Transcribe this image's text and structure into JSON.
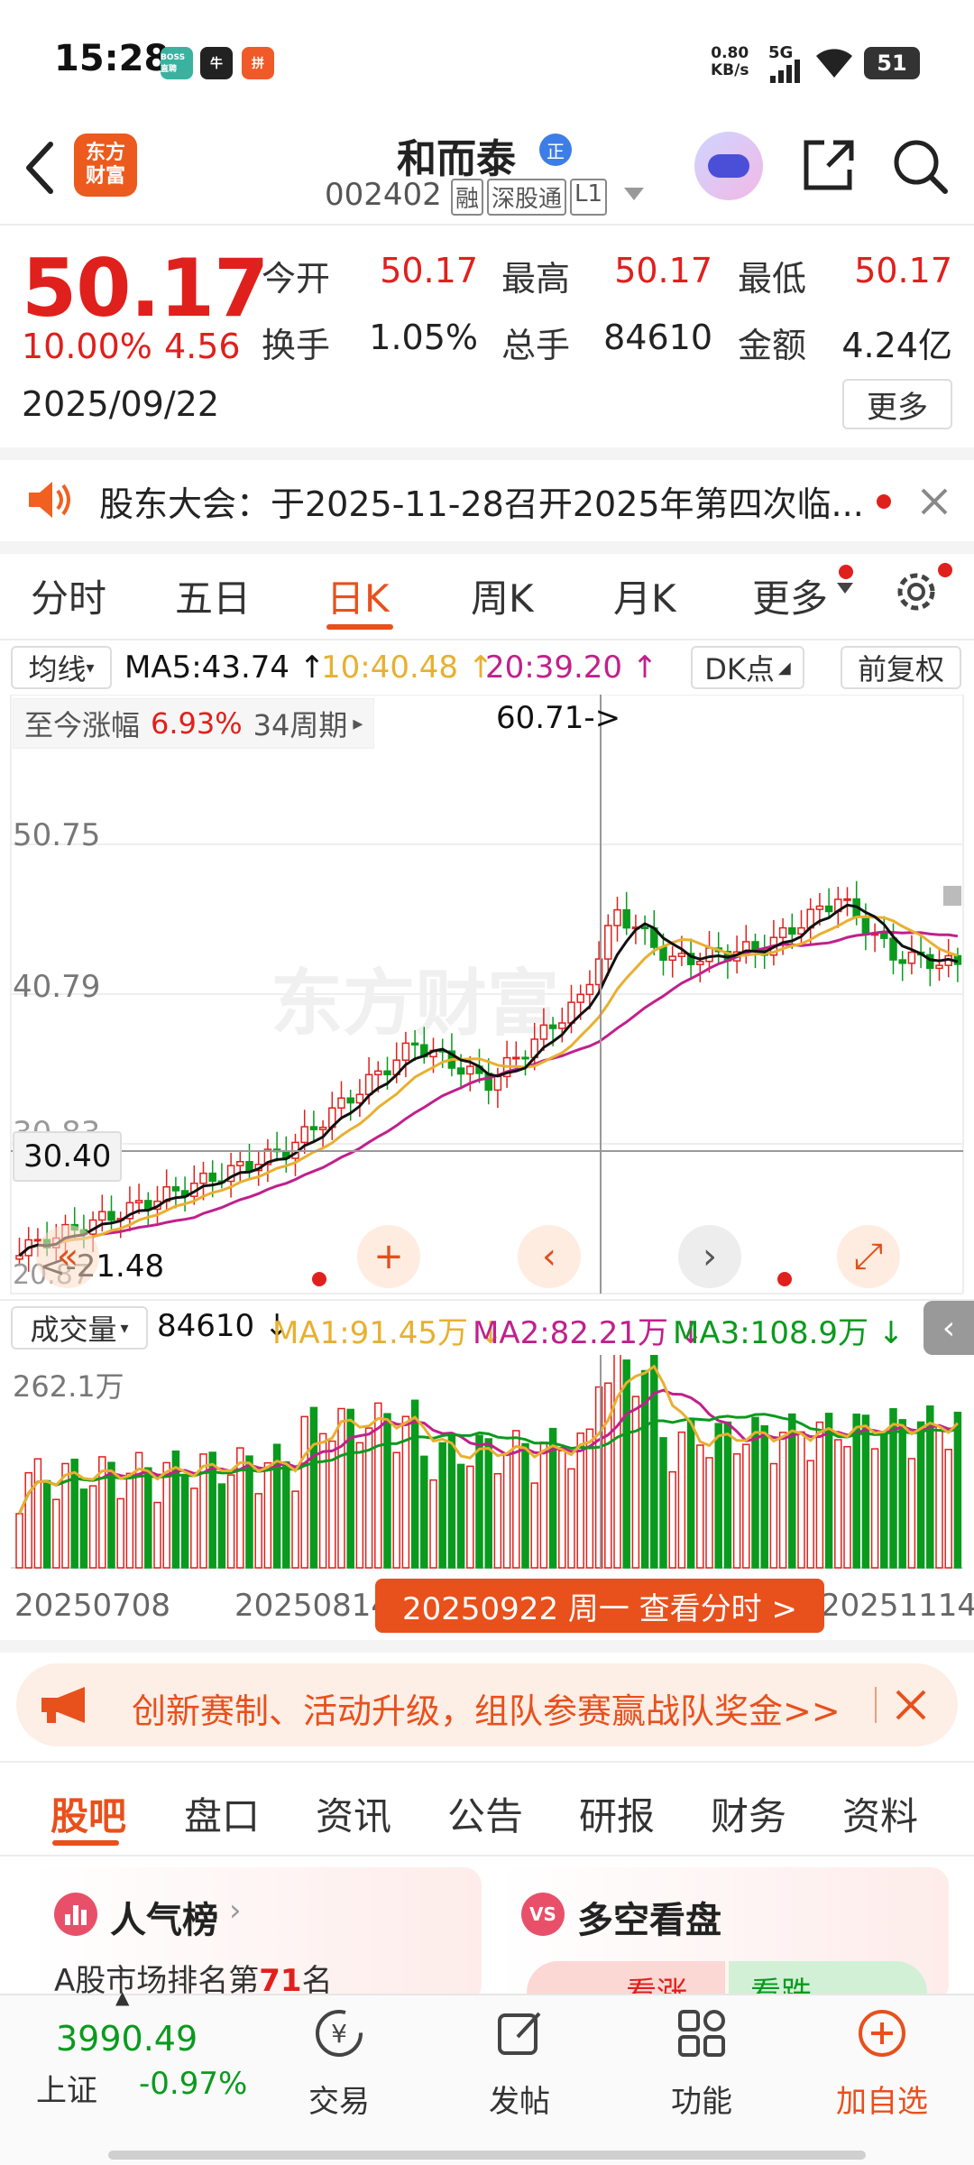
{
  "status_bar": {
    "time": "15:28",
    "net_speed_value": "0.80",
    "net_speed_unit": "KB/s",
    "net_type": "5G",
    "battery": "51",
    "app_icons": [
      "BOSS直聘",
      "牛",
      "拼"
    ]
  },
  "header": {
    "stock_name": "和而泰",
    "stock_code": "002402",
    "tags": [
      "融",
      "深股通",
      "L1"
    ],
    "logo_text_1": "东方",
    "logo_text_2": "财富",
    "name_badge": "正"
  },
  "quote": {
    "price": "50.17",
    "change_pct": "10.00%",
    "change_amt": "4.56",
    "date": "2025/09/22",
    "open_label": "今开",
    "open": "50.17",
    "high_label": "最高",
    "high": "50.17",
    "low_label": "最低",
    "low": "50.17",
    "turnover_label": "换手",
    "turnover": "1.05%",
    "volume_label": "总手",
    "volume": "84610",
    "amount_label": "金额",
    "amount": "4.24亿",
    "more_label": "更多"
  },
  "notice": {
    "text": "股东大会：于2025-11-28召开2025年第四次临..."
  },
  "chart_tabs": [
    "分时",
    "五日",
    "日K",
    "周K",
    "月K",
    "更多"
  ],
  "chart_tabs_active": "日K",
  "indicator_bar": {
    "ma_selector": "均线",
    "ma5": "MA5:43.74 ↑",
    "ma10": "10:40.48 ↑",
    "ma20": "20:39.20 ↑",
    "dk_label": "DK点",
    "adjust_label": "前复权"
  },
  "kline": {
    "period_label": "至今涨幅",
    "period_pct": "6.93%",
    "period_count": "34周期",
    "max_marker": "60.71->",
    "min_marker": "<-21.48",
    "crosshair_price": "30.40",
    "y_labels": [
      "50.75",
      "40.79"
    ],
    "y_partial": [
      "30.83",
      "20.87"
    ]
  },
  "volume": {
    "selector": "成交量",
    "current": "84610 ↓",
    "ma1": "MA1:91.45万 ↓",
    "ma2": "MA2:82.21万 ↓",
    "ma3": "MA3:108.9万 ↓",
    "max_label": "262.1万"
  },
  "x_axis": {
    "labels": [
      "20250708",
      "20250814",
      "20251114"
    ],
    "crosshair_label": "20250922 周一 查看分时 >"
  },
  "promo": {
    "text": "创新赛制、活动升级，组队参赛赢战队奖金>>"
  },
  "sub_tabs": [
    "股吧",
    "盘口",
    "资讯",
    "公告",
    "研报",
    "财务",
    "资料"
  ],
  "sub_tabs_active": "股吧",
  "cards": {
    "popularity_title": "人气榜",
    "popularity_sub_prefix": "A股市场排名第",
    "popularity_rank": "71",
    "popularity_sub_suffix": "名",
    "bull_bear_title": "多空看盘",
    "bull_label": "看涨",
    "bear_label": "看跌"
  },
  "bottom_nav": {
    "index_value": "3990.49",
    "index_name": "上证",
    "index_change": "-0.97%",
    "items": [
      "交易",
      "发帖",
      "功能",
      "加自选"
    ]
  },
  "colors": {
    "up": "#e0201c",
    "down": "#0a9a1e",
    "accent": "#e8601c",
    "ma5": "#111111",
    "ma10": "#e8b030",
    "ma20": "#c0208c"
  }
}
